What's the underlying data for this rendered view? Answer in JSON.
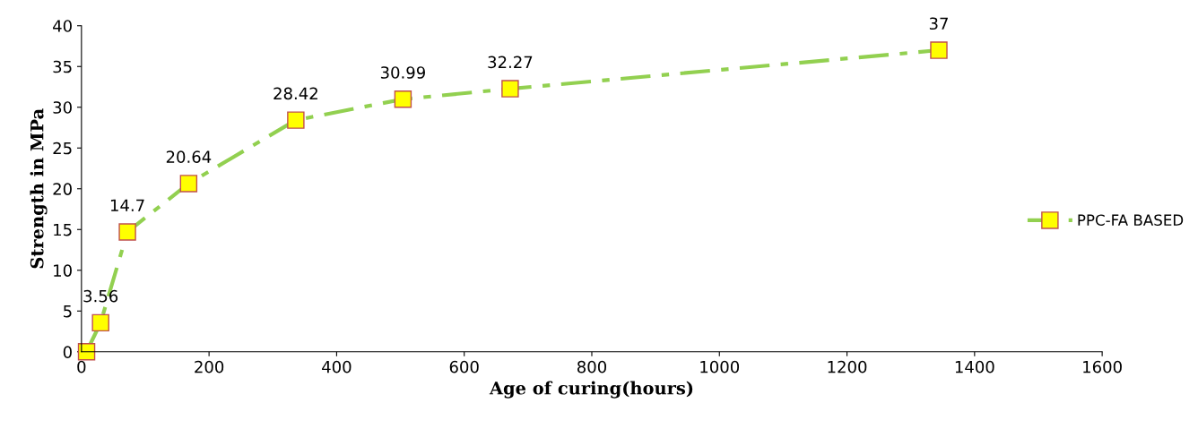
{
  "chart_data": {
    "type": "line",
    "xlabel": "Age of curing(hours)",
    "ylabel": "Strength in MPa",
    "x": [
      8,
      30,
      72,
      168,
      336,
      504,
      672,
      1344
    ],
    "series": [
      {
        "name": "PPC-FA BASED",
        "color": "#92d050",
        "values": [
          0,
          3.56,
          14.7,
          20.64,
          28.42,
          30.99,
          32.27,
          37
        ],
        "value_labels": [
          null,
          "3.56",
          "14.7",
          "20.64",
          "28.42",
          "30.99",
          "32.27",
          "37"
        ]
      }
    ],
    "xlim": [
      0,
      1600
    ],
    "xticks": [
      0,
      200,
      400,
      600,
      800,
      1000,
      1200,
      1400,
      1600
    ],
    "ylim": [
      0,
      40
    ],
    "yticks": [
      0,
      5,
      10,
      15,
      20,
      25,
      30,
      35,
      40
    ],
    "marker": "square",
    "line_style": "dashed",
    "legend": "right",
    "grid": false
  }
}
